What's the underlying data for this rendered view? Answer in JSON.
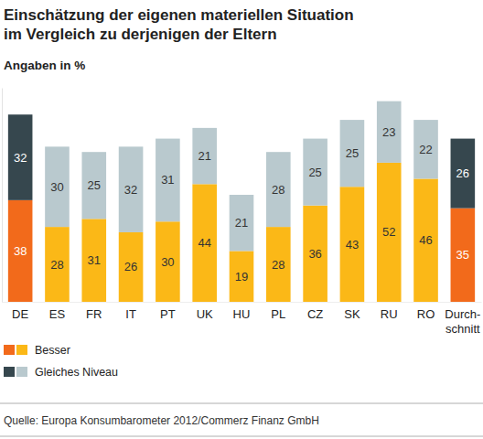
{
  "chart_data": {
    "type": "bar",
    "title": "Einschätzung der eigenen materiellen Situation\nim Vergleich zu derjenigen der Eltern",
    "subtitle": "Angaben in %",
    "annotations": [
      "Quelle: Europa Konsumbarometer 2012/Commerz Finanz GmbH"
    ],
    "categories": [
      "DE",
      "ES",
      "FR",
      "IT",
      "PT",
      "UK",
      "HU",
      "PL",
      "CZ",
      "SK",
      "RU",
      "RO",
      "Durch-\nschnitt"
    ],
    "series": [
      {
        "name": "Besser",
        "colors": [
          "#f26a1b",
          "#fbb817",
          "#fbb817",
          "#fbb817",
          "#fbb817",
          "#fbb817",
          "#fbb817",
          "#fbb817",
          "#fbb817",
          "#fbb817",
          "#fbb817",
          "#fbb817",
          "#f26a1b"
        ],
        "values": [
          38,
          28,
          31,
          26,
          30,
          44,
          19,
          28,
          36,
          43,
          52,
          46,
          35
        ]
      },
      {
        "name": "Gleiches Niveau",
        "colors": [
          "#36474e",
          "#b9c9ce",
          "#b9c9ce",
          "#b9c9ce",
          "#b9c9ce",
          "#b9c9ce",
          "#b9c9ce",
          "#b9c9ce",
          "#b9c9ce",
          "#b9c9ce",
          "#b9c9ce",
          "#b9c9ce",
          "#36474e"
        ],
        "values": [
          32,
          30,
          25,
          32,
          31,
          21,
          21,
          28,
          25,
          25,
          23,
          22,
          26
        ]
      }
    ],
    "ylim": [
      0,
      80
    ],
    "stacked": true,
    "data_labels": true,
    "tick_labels": "x",
    "grid": false,
    "legend": "bottom-left"
  }
}
